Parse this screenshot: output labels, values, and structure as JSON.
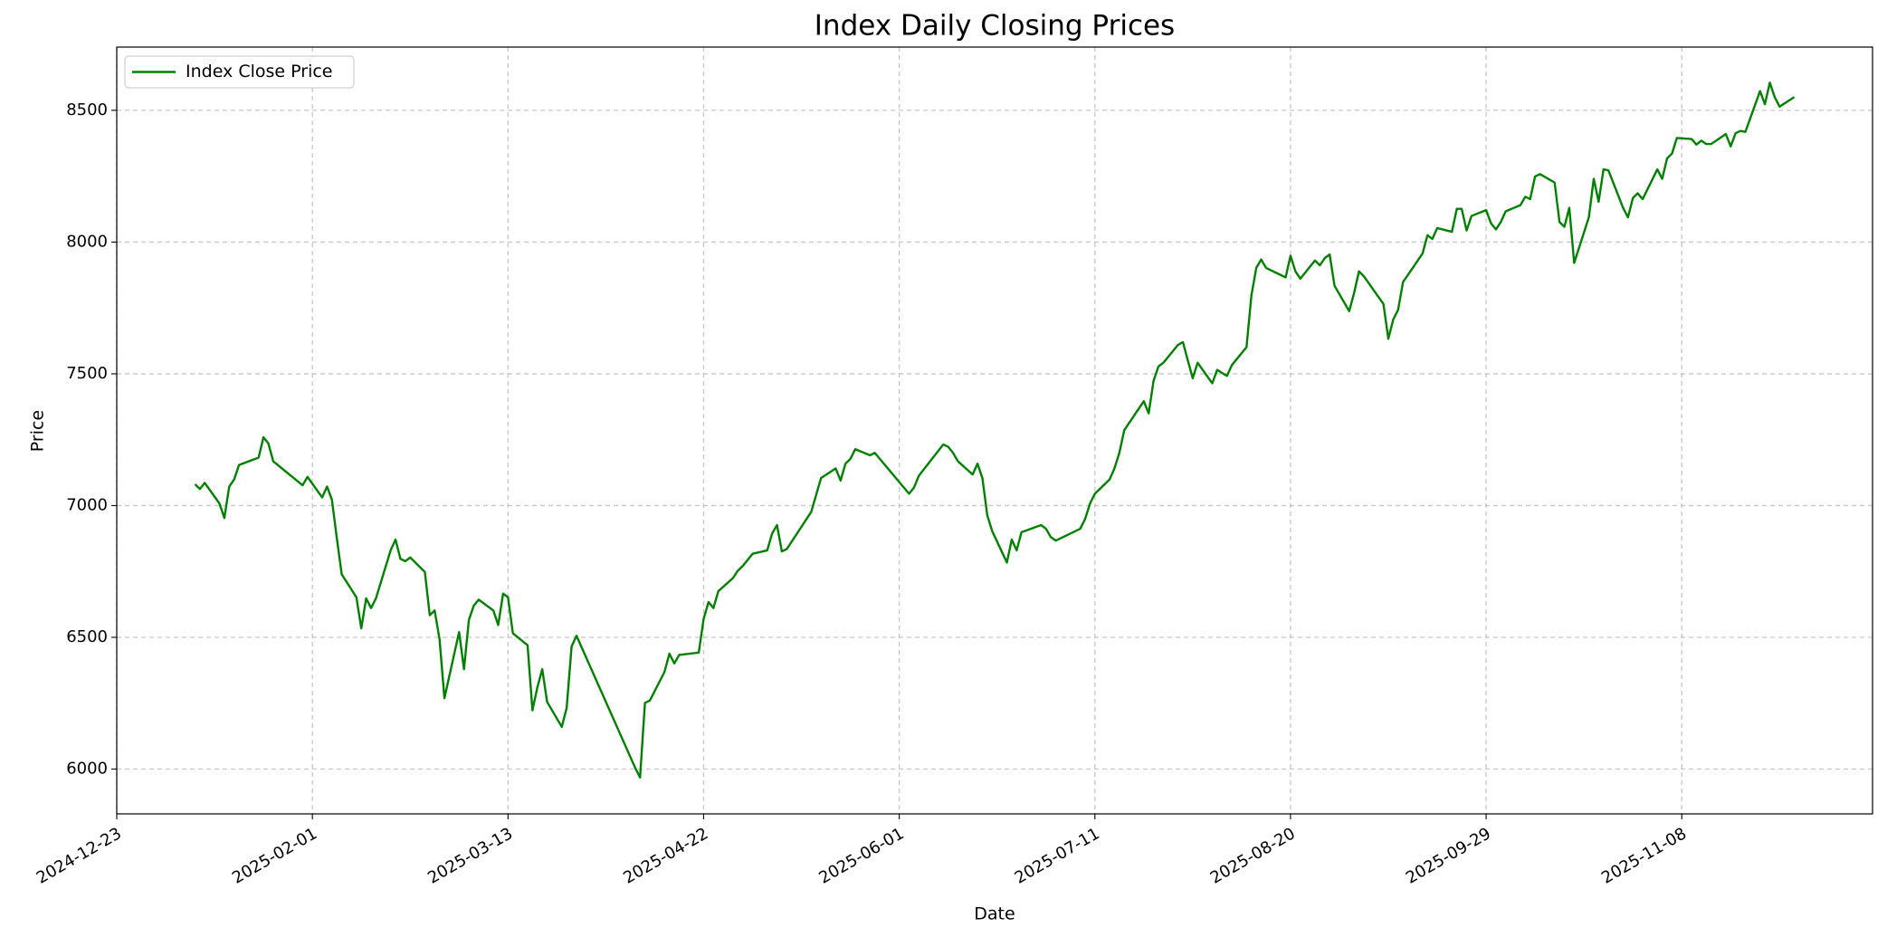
{
  "chart_data": {
    "type": "line",
    "title": "Index Daily Closing Prices",
    "xlabel": "Date",
    "ylabel": "Price",
    "legend": "upper left",
    "grid": true,
    "xlim": [
      "2024-12-23",
      "2025-12-17"
    ],
    "xticks": [
      "2024-12-23",
      "2025-02-01",
      "2025-03-13",
      "2025-04-22",
      "2025-06-01",
      "2025-07-11",
      "2025-08-20",
      "2025-09-29",
      "2025-11-08"
    ],
    "ylim": [
      5830,
      8740
    ],
    "yticks": [
      6000,
      6500,
      7000,
      7500,
      8000,
      8500
    ],
    "x": [
      "2025-01-08",
      "2025-01-09",
      "2025-01-10",
      "2025-01-13",
      "2025-01-14",
      "2025-01-15",
      "2025-01-16",
      "2025-01-17",
      "2025-01-21",
      "2025-01-22",
      "2025-01-23",
      "2025-01-24",
      "2025-01-30",
      "2025-01-31",
      "2025-02-03",
      "2025-02-04",
      "2025-02-05",
      "2025-02-06",
      "2025-02-07",
      "2025-02-10",
      "2025-02-11",
      "2025-02-12",
      "2025-02-13",
      "2025-02-14",
      "2025-02-17",
      "2025-02-18",
      "2025-02-19",
      "2025-02-20",
      "2025-02-21",
      "2025-02-24",
      "2025-02-25",
      "2025-02-26",
      "2025-02-27",
      "2025-02-28",
      "2025-03-03",
      "2025-03-04",
      "2025-03-05",
      "2025-03-06",
      "2025-03-07",
      "2025-03-10",
      "2025-03-11",
      "2025-03-12",
      "2025-03-13",
      "2025-03-14",
      "2025-03-17",
      "2025-03-18",
      "2025-03-19",
      "2025-03-20",
      "2025-03-21",
      "2025-03-24",
      "2025-03-25",
      "2025-03-26",
      "2025-03-27",
      "2025-04-08",
      "2025-04-09",
      "2025-04-10",
      "2025-04-11",
      "2025-04-14",
      "2025-04-15",
      "2025-04-16",
      "2025-04-17",
      "2025-04-21",
      "2025-04-22",
      "2025-04-23",
      "2025-04-24",
      "2025-04-25",
      "2025-04-28",
      "2025-04-29",
      "2025-04-30",
      "2025-05-02",
      "2025-05-05",
      "2025-05-06",
      "2025-05-07",
      "2025-05-08",
      "2025-05-09",
      "2025-05-14",
      "2025-05-16",
      "2025-05-19",
      "2025-05-20",
      "2025-05-21",
      "2025-05-22",
      "2025-05-23",
      "2025-05-26",
      "2025-05-27",
      "2025-06-03",
      "2025-06-04",
      "2025-06-05",
      "2025-06-10",
      "2025-06-11",
      "2025-06-12",
      "2025-06-13",
      "2025-06-16",
      "2025-06-17",
      "2025-06-18",
      "2025-06-19",
      "2025-06-20",
      "2025-06-23",
      "2025-06-24",
      "2025-06-25",
      "2025-06-26",
      "2025-06-30",
      "2025-07-01",
      "2025-07-02",
      "2025-07-03",
      "2025-07-07",
      "2025-07-08",
      "2025-07-09",
      "2025-07-10",
      "2025-07-11",
      "2025-07-14",
      "2025-07-15",
      "2025-07-16",
      "2025-07-17",
      "2025-07-21",
      "2025-07-22",
      "2025-07-23",
      "2025-07-24",
      "2025-07-25",
      "2025-07-28",
      "2025-07-29",
      "2025-07-30",
      "2025-07-31",
      "2025-08-01",
      "2025-08-04",
      "2025-08-05",
      "2025-08-07",
      "2025-08-08",
      "2025-08-11",
      "2025-08-12",
      "2025-08-13",
      "2025-08-14",
      "2025-08-15",
      "2025-08-19",
      "2025-08-20",
      "2025-08-21",
      "2025-08-22",
      "2025-08-25",
      "2025-08-26",
      "2025-08-27",
      "2025-08-28",
      "2025-08-29",
      "2025-09-01",
      "2025-09-02",
      "2025-09-03",
      "2025-09-04",
      "2025-09-08",
      "2025-09-09",
      "2025-09-10",
      "2025-09-11",
      "2025-09-12",
      "2025-09-16",
      "2025-09-17",
      "2025-09-18",
      "2025-09-19",
      "2025-09-22",
      "2025-09-23",
      "2025-09-24",
      "2025-09-25",
      "2025-09-26",
      "2025-09-29",
      "2025-09-30",
      "2025-10-01",
      "2025-10-02",
      "2025-10-03",
      "2025-10-06",
      "2025-10-07",
      "2025-10-08",
      "2025-10-09",
      "2025-10-10",
      "2025-10-13",
      "2025-10-14",
      "2025-10-15",
      "2025-10-16",
      "2025-10-17",
      "2025-10-20",
      "2025-10-21",
      "2025-10-22",
      "2025-10-23",
      "2025-10-24",
      "2025-10-27",
      "2025-10-28",
      "2025-10-29",
      "2025-10-30",
      "2025-10-31",
      "2025-11-03",
      "2025-11-04",
      "2025-11-05",
      "2025-11-06",
      "2025-11-07",
      "2025-11-10",
      "2025-11-11",
      "2025-11-12",
      "2025-11-13",
      "2025-11-14",
      "2025-11-17",
      "2025-11-18",
      "2025-11-19",
      "2025-11-20",
      "2025-11-21",
      "2025-11-24",
      "2025-11-25",
      "2025-11-26",
      "2025-11-27",
      "2025-11-28",
      "2025-12-01"
    ],
    "series": [
      {
        "name": "Index Close Price",
        "color": "#008000",
        "values": [
          7081,
          7063,
          7086,
          7008,
          6953,
          7072,
          7099,
          7154,
          7182,
          7259,
          7236,
          7168,
          7077,
          7109,
          7031,
          7072,
          7022,
          6876,
          6739,
          6652,
          6534,
          6648,
          6611,
          6648,
          6830,
          6871,
          6798,
          6789,
          6803,
          6748,
          6584,
          6602,
          6493,
          6269,
          6520,
          6379,
          6566,
          6620,
          6643,
          6602,
          6547,
          6666,
          6652,
          6515,
          6470,
          6223,
          6310,
          6379,
          6255,
          6160,
          6233,
          6465,
          6506,
          6005,
          5968,
          6251,
          6260,
          6369,
          6438,
          6401,
          6433,
          6442,
          6570,
          6634,
          6611,
          6675,
          6725,
          6753,
          6771,
          6817,
          6830,
          6894,
          6926,
          6826,
          6835,
          6976,
          7104,
          7141,
          7095,
          7159,
          7177,
          7214,
          7191,
          7200,
          7045,
          7068,
          7113,
          7232,
          7223,
          7200,
          7168,
          7118,
          7159,
          7104,
          6963,
          6903,
          6784,
          6871,
          6830,
          6899,
          6926,
          6912,
          6880,
          6867,
          6903,
          6912,
          6949,
          7008,
          7045,
          7099,
          7141,
          7200,
          7286,
          7396,
          7350,
          7474,
          7528,
          7542,
          7610,
          7620,
          7551,
          7483,
          7542,
          7464,
          7515,
          7492,
          7533,
          7601,
          7797,
          7902,
          7934,
          7902,
          7866,
          7948,
          7889,
          7861,
          7930,
          7912,
          7939,
          7953,
          7834,
          7738,
          7807,
          7889,
          7870,
          7765,
          7633,
          7706,
          7743,
          7848,
          7957,
          8026,
          8012,
          8053,
          8039,
          8126,
          8126,
          8044,
          8099,
          8121,
          8071,
          8048,
          8076,
          8117,
          8140,
          8172,
          8163,
          8249,
          8258,
          8226,
          8076,
          8058,
          8130,
          7921,
          8094,
          8240,
          8153,
          8276,
          8272,
          8130,
          8094,
          8167,
          8185,
          8163,
          8276,
          8240,
          8318,
          8336,
          8395,
          8391,
          8370,
          8385,
          8372,
          8372,
          8410,
          8363,
          8413,
          8422,
          8418,
          8573,
          8523,
          8605,
          8550,
          8514,
          8550
        ]
      }
    ]
  }
}
